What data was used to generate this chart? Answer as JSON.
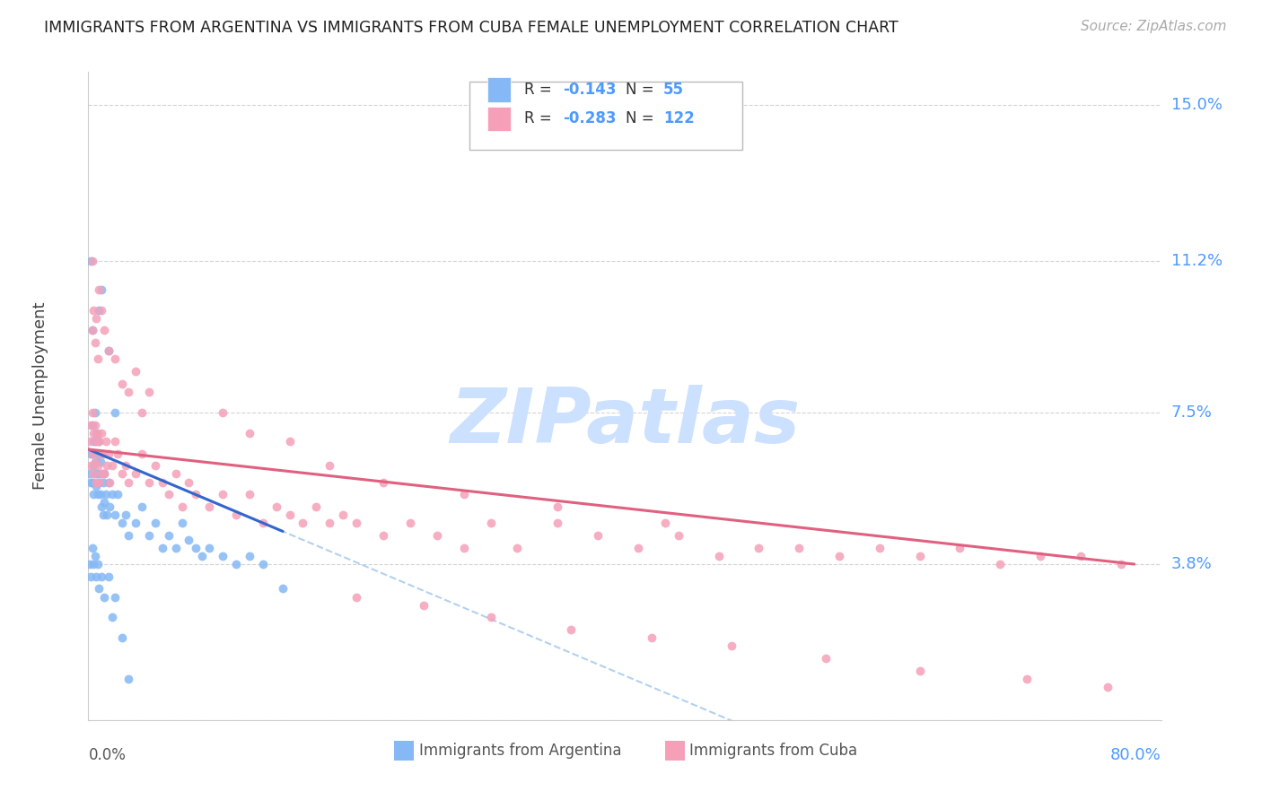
{
  "title": "IMMIGRANTS FROM ARGENTINA VS IMMIGRANTS FROM CUBA FEMALE UNEMPLOYMENT CORRELATION CHART",
  "source": "Source: ZipAtlas.com",
  "ylabel": "Female Unemployment",
  "xlim": [
    0.0,
    0.8
  ],
  "ylim": [
    0.0,
    0.158
  ],
  "ytick_vals": [
    0.0,
    0.038,
    0.075,
    0.112,
    0.15
  ],
  "ytick_labels": [
    "0.0%",
    "3.8%",
    "7.5%",
    "11.2%",
    "15.0%"
  ],
  "xtick_left": "0.0%",
  "xtick_right": "80.0%",
  "argentina_color": "#85b8f5",
  "argentina_line_color": "#3366cc",
  "cuba_color": "#f5a0b8",
  "cuba_line_color": "#e06080",
  "dash_color": "#aaccee",
  "argentina_R": "-0.143",
  "argentina_N": "55",
  "cuba_R": "-0.283",
  "cuba_N": "122",
  "argentina_x": [
    0.001,
    0.002,
    0.002,
    0.003,
    0.003,
    0.003,
    0.004,
    0.004,
    0.004,
    0.005,
    0.005,
    0.005,
    0.006,
    0.006,
    0.006,
    0.007,
    0.007,
    0.007,
    0.008,
    0.008,
    0.009,
    0.009,
    0.01,
    0.01,
    0.011,
    0.011,
    0.012,
    0.012,
    0.013,
    0.014,
    0.015,
    0.016,
    0.018,
    0.02,
    0.022,
    0.025,
    0.028,
    0.03,
    0.035,
    0.04,
    0.045,
    0.05,
    0.055,
    0.06,
    0.065,
    0.07,
    0.075,
    0.08,
    0.085,
    0.09,
    0.1,
    0.11,
    0.12,
    0.13,
    0.145
  ],
  "argentina_y": [
    0.06,
    0.065,
    0.058,
    0.072,
    0.065,
    0.058,
    0.068,
    0.062,
    0.055,
    0.075,
    0.068,
    0.06,
    0.07,
    0.063,
    0.057,
    0.065,
    0.06,
    0.055,
    0.068,
    0.058,
    0.063,
    0.055,
    0.06,
    0.052,
    0.058,
    0.05,
    0.06,
    0.053,
    0.055,
    0.05,
    0.058,
    0.052,
    0.055,
    0.05,
    0.055,
    0.048,
    0.05,
    0.045,
    0.048,
    0.052,
    0.045,
    0.048,
    0.042,
    0.045,
    0.042,
    0.048,
    0.044,
    0.042,
    0.04,
    0.042,
    0.04,
    0.038,
    0.04,
    0.038,
    0.032
  ],
  "argentina_outlier_x": [
    0.002,
    0.003,
    0.008,
    0.01,
    0.015,
    0.02
  ],
  "argentina_outlier_y": [
    0.112,
    0.095,
    0.1,
    0.105,
    0.09,
    0.075
  ],
  "argentina_low_x": [
    0.001,
    0.002,
    0.003,
    0.004,
    0.005,
    0.006,
    0.007,
    0.008,
    0.01,
    0.012,
    0.015,
    0.018,
    0.02,
    0.025,
    0.03
  ],
  "argentina_low_y": [
    0.038,
    0.035,
    0.042,
    0.038,
    0.04,
    0.035,
    0.038,
    0.032,
    0.035,
    0.03,
    0.035,
    0.025,
    0.03,
    0.02,
    0.01
  ],
  "cuba_x": [
    0.001,
    0.002,
    0.002,
    0.003,
    0.003,
    0.004,
    0.004,
    0.005,
    0.005,
    0.006,
    0.006,
    0.007,
    0.007,
    0.008,
    0.008,
    0.009,
    0.01,
    0.01,
    0.011,
    0.012,
    0.013,
    0.014,
    0.015,
    0.016,
    0.018,
    0.02,
    0.022,
    0.025,
    0.028,
    0.03,
    0.035,
    0.04,
    0.045,
    0.05,
    0.055,
    0.06,
    0.065,
    0.07,
    0.075,
    0.08,
    0.09,
    0.1,
    0.11,
    0.12,
    0.13,
    0.14,
    0.15,
    0.16,
    0.17,
    0.18,
    0.19,
    0.2,
    0.22,
    0.24,
    0.26,
    0.28,
    0.3,
    0.32,
    0.35,
    0.38,
    0.41,
    0.44,
    0.47,
    0.5,
    0.53,
    0.56,
    0.59,
    0.62,
    0.65,
    0.68,
    0.71,
    0.74,
    0.77
  ],
  "cuba_y": [
    0.068,
    0.072,
    0.062,
    0.075,
    0.065,
    0.07,
    0.06,
    0.072,
    0.063,
    0.068,
    0.058,
    0.07,
    0.062,
    0.068,
    0.058,
    0.065,
    0.07,
    0.06,
    0.065,
    0.06,
    0.068,
    0.062,
    0.065,
    0.058,
    0.062,
    0.068,
    0.065,
    0.06,
    0.062,
    0.058,
    0.06,
    0.065,
    0.058,
    0.062,
    0.058,
    0.055,
    0.06,
    0.052,
    0.058,
    0.055,
    0.052,
    0.055,
    0.05,
    0.055,
    0.048,
    0.052,
    0.05,
    0.048,
    0.052,
    0.048,
    0.05,
    0.048,
    0.045,
    0.048,
    0.045,
    0.042,
    0.048,
    0.042,
    0.048,
    0.045,
    0.042,
    0.045,
    0.04,
    0.042,
    0.042,
    0.04,
    0.042,
    0.04,
    0.042,
    0.038,
    0.04,
    0.04,
    0.038
  ],
  "cuba_high_x": [
    0.003,
    0.004,
    0.005,
    0.006,
    0.007,
    0.008,
    0.01,
    0.012,
    0.015,
    0.02,
    0.025,
    0.03,
    0.035,
    0.04,
    0.045
  ],
  "cuba_high_y": [
    0.095,
    0.1,
    0.092,
    0.098,
    0.088,
    0.105,
    0.1,
    0.095,
    0.09,
    0.088,
    0.082,
    0.08,
    0.085,
    0.075,
    0.08
  ],
  "cuba_outlier_x": [
    0.003
  ],
  "cuba_outlier_y": [
    0.112
  ],
  "cuba_mid_x": [
    0.1,
    0.12,
    0.15,
    0.18,
    0.22,
    0.28,
    0.35,
    0.43
  ],
  "cuba_mid_y": [
    0.075,
    0.07,
    0.068,
    0.062,
    0.058,
    0.055,
    0.052,
    0.048
  ],
  "cuba_low_x": [
    0.2,
    0.25,
    0.3,
    0.36,
    0.42,
    0.48,
    0.55,
    0.62,
    0.7,
    0.76
  ],
  "cuba_low_y": [
    0.03,
    0.028,
    0.025,
    0.022,
    0.02,
    0.018,
    0.015,
    0.012,
    0.01,
    0.008
  ],
  "watermark_text": "ZIPatlas",
  "watermark_color": "#cce0ff",
  "background_color": "#ffffff",
  "grid_color": "#d0d0d0",
  "spine_color": "#cccccc",
  "title_color": "#222222",
  "right_label_color": "#4d9aff",
  "legend_r_color": "#333333",
  "legend_val_color": "#4d9aff",
  "bottom_legend_color": "#555555",
  "source_color": "#aaaaaa"
}
